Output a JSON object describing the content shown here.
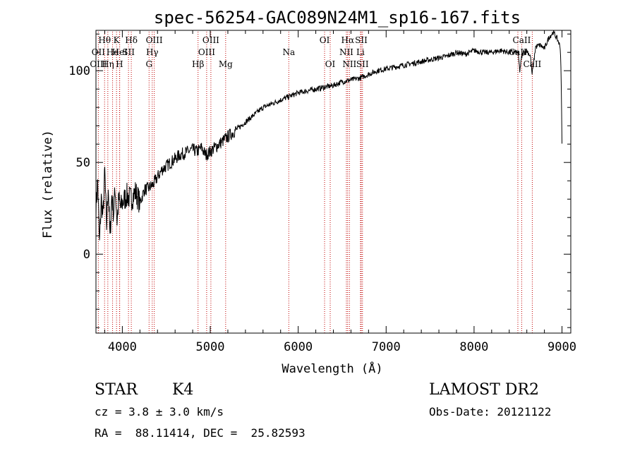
{
  "chart_data": {
    "type": "line",
    "title": "spec-56254-GAC089N24M1_sp16-167.fits",
    "xlabel": "Wavelength (Å)",
    "ylabel": "Flux (relative)",
    "xlim": [
      3700,
      9100
    ],
    "ylim": [
      -43,
      122
    ],
    "xticks": [
      4000,
      5000,
      6000,
      7000,
      8000,
      9000
    ],
    "xtick_labels": [
      "4000",
      "5000",
      "6000",
      "7000",
      "8000",
      "9000"
    ],
    "yticks": [
      0,
      50,
      100
    ],
    "ytick_labels": [
      "0",
      "50",
      "100"
    ],
    "grid": false,
    "series": [
      {
        "name": "spectrum",
        "x": [
          3700,
          3720,
          3740,
          3760,
          3780,
          3800,
          3820,
          3840,
          3860,
          3880,
          3900,
          3920,
          3940,
          3960,
          3980,
          4000,
          4050,
          4100,
          4150,
          4200,
          4250,
          4300,
          4350,
          4400,
          4450,
          4500,
          4550,
          4600,
          4650,
          4700,
          4750,
          4800,
          4850,
          4900,
          4950,
          5000,
          5050,
          5100,
          5150,
          5200,
          5300,
          5400,
          5500,
          5600,
          5700,
          5800,
          5900,
          6000,
          6100,
          6200,
          6300,
          6400,
          6500,
          6600,
          6700,
          6800,
          6900,
          7000,
          7100,
          7200,
          7300,
          7400,
          7500,
          7600,
          7700,
          7800,
          7900,
          8000,
          8100,
          8200,
          8300,
          8400,
          8500,
          8520,
          8540,
          8560,
          8600,
          8640,
          8660,
          8700,
          8750,
          8800,
          8850,
          8900,
          8950,
          8980,
          8990,
          9000
        ],
        "y": [
          25,
          40,
          5,
          30,
          20,
          45,
          15,
          38,
          8,
          32,
          22,
          36,
          18,
          30,
          25,
          28,
          32,
          30,
          34,
          28,
          35,
          36,
          38,
          42,
          46,
          48,
          50,
          52,
          54,
          55,
          56,
          57,
          56,
          58,
          54,
          56,
          58,
          60,
          62,
          64,
          68,
          72,
          76,
          80,
          82,
          84,
          86,
          88,
          89,
          90,
          91,
          92,
          94,
          95,
          96,
          98,
          100,
          101,
          102,
          103,
          104,
          105,
          106,
          107,
          108,
          110,
          109,
          111,
          110,
          110,
          111,
          110,
          110,
          100,
          107,
          110,
          111,
          108,
          98,
          113,
          114,
          112,
          118,
          121,
          117,
          113,
          100,
          60
        ]
      }
    ],
    "spectral_lines": {
      "top": [
        {
          "label": "Hθ",
          "x": 3798
        },
        {
          "label": "K",
          "x": 3934
        },
        {
          "label": "Hδ",
          "x": 4102
        },
        {
          "label": "OIII",
          "x": 4363
        },
        {
          "label": "OIII",
          "x": 5007
        },
        {
          "label": "OI",
          "x": 6300
        },
        {
          "label": "Hα",
          "x": 6563
        },
        {
          "label": "SII",
          "x": 6717
        },
        {
          "label": "CaII",
          "x": 8542
        }
      ],
      "middle": [
        {
          "label": "OII",
          "x": 3727
        },
        {
          "label": "He",
          "x": 3889
        },
        {
          "label": "HeI",
          "x": 3970
        },
        {
          "label": "SII",
          "x": 4070
        },
        {
          "label": "Hγ",
          "x": 4340
        },
        {
          "label": "OIII",
          "x": 4959
        },
        {
          "label": "Na",
          "x": 5893
        },
        {
          "label": "NII",
          "x": 6548
        },
        {
          "label": "Li",
          "x": 6708
        },
        {
          "label": "CaII",
          "x": 8498
        }
      ],
      "bottom": [
        {
          "label": "OIII",
          "x": 3727
        },
        {
          "label": "Hη",
          "x": 3835
        },
        {
          "label": "H",
          "x": 3968
        },
        {
          "label": "G",
          "x": 4304
        },
        {
          "label": "Hβ",
          "x": 4861
        },
        {
          "label": "Mg",
          "x": 5175
        },
        {
          "label": "OI",
          "x": 6364
        },
        {
          "label": "NII",
          "x": 6583
        },
        {
          "label": "SII",
          "x": 6731
        },
        {
          "label": "CaII",
          "x": 8662
        }
      ]
    }
  },
  "info": {
    "object_class": "STAR",
    "subclass": "K4",
    "release": "LAMOST DR2",
    "cz": "cz = 3.8 ± 3.0 km/s",
    "obs_date": "Obs-Date: 20121122",
    "coords": "RA =  88.11414, DEC =  25.82593"
  }
}
